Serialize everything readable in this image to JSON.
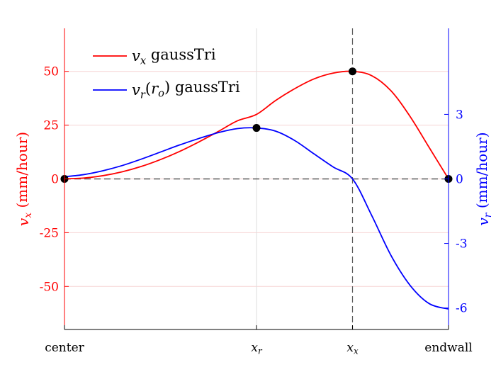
{
  "chart_data": {
    "type": "line",
    "x_categories": [
      "center",
      "x_r",
      "x_x",
      "endwall"
    ],
    "x_positions": [
      0,
      0.5,
      0.75,
      1.0
    ],
    "x_tick_labels": [
      {
        "main": "center",
        "sub": ""
      },
      {
        "main": "x",
        "sub": "r"
      },
      {
        "main": "x",
        "sub": "x"
      },
      {
        "main": "endwall",
        "sub": ""
      }
    ],
    "left_axis": {
      "label_main": "v",
      "label_sub": "x",
      "label_rest": " (mm/hour)",
      "ticks": [
        -50,
        -25,
        0,
        25,
        50
      ],
      "tick_labels": [
        "-50",
        "-25",
        "0",
        "25",
        "50"
      ],
      "ylim": [
        -70,
        70
      ],
      "color": "#ff0000"
    },
    "right_axis": {
      "label_main": "v",
      "label_sub": "r",
      "label_rest": " (mm/hour)",
      "ticks": [
        -6,
        -3,
        0,
        3
      ],
      "tick_labels": [
        "-6",
        "-3",
        "0",
        "3"
      ],
      "ylim": [
        -7.0,
        7.0
      ],
      "color": "#0000ff"
    },
    "series": [
      {
        "name": "v_x gaussTri",
        "legend_main": "v",
        "legend_sub": "x",
        "legend_rest": " gaussTri",
        "axis": "left",
        "color": "#ff0000",
        "x": [
          0,
          0.05,
          0.1,
          0.15,
          0.2,
          0.25,
          0.3,
          0.35,
          0.4,
          0.45,
          0.5,
          0.55,
          0.6,
          0.65,
          0.7,
          0.75,
          0.8,
          0.85,
          0.9,
          0.95,
          1.0
        ],
        "y": [
          0,
          0.4,
          1.5,
          3.3,
          5.8,
          9.0,
          12.8,
          17.2,
          22.0,
          27.0,
          30.0,
          36.5,
          42.0,
          46.5,
          49.2,
          50.0,
          48.0,
          41.0,
          29.0,
          14.5,
          0
        ]
      },
      {
        "name": "v_r(r_o) gaussTri",
        "legend_main": "v",
        "legend_sub": "r",
        "legend_rest_pre": "(",
        "legend_main2": "r",
        "legend_sub2": "o",
        "legend_rest": ") gaussTri",
        "axis": "right",
        "color": "#0000ff",
        "x": [
          0,
          0.05,
          0.1,
          0.15,
          0.2,
          0.25,
          0.3,
          0.35,
          0.4,
          0.45,
          0.5,
          0.55,
          0.6,
          0.65,
          0.7,
          0.75,
          0.8,
          0.85,
          0.9,
          0.95,
          1.0
        ],
        "y": [
          0.1,
          0.2,
          0.38,
          0.62,
          0.92,
          1.25,
          1.58,
          1.88,
          2.15,
          2.34,
          2.37,
          2.22,
          1.78,
          1.16,
          0.55,
          0.0,
          -1.7,
          -3.55,
          -4.95,
          -5.8,
          -6.05
        ]
      }
    ],
    "markers": [
      {
        "x": 0,
        "y_left": 0
      },
      {
        "x": 0.5,
        "y_right": 2.37
      },
      {
        "x": 0.75,
        "y_left": 50
      },
      {
        "x": 1.0,
        "y_left": 0
      }
    ],
    "reference_lines": [
      {
        "orientation": "horizontal",
        "axis": "left",
        "value": 0,
        "style": "dashed",
        "color": "#5a5a5a"
      },
      {
        "orientation": "vertical",
        "x": 0.75,
        "style": "dashed",
        "color": "#5a5a5a"
      }
    ],
    "grid": "horizontal at left ticks (light pink), vertical at x_r (light gray)",
    "legend_position": "top-left"
  }
}
